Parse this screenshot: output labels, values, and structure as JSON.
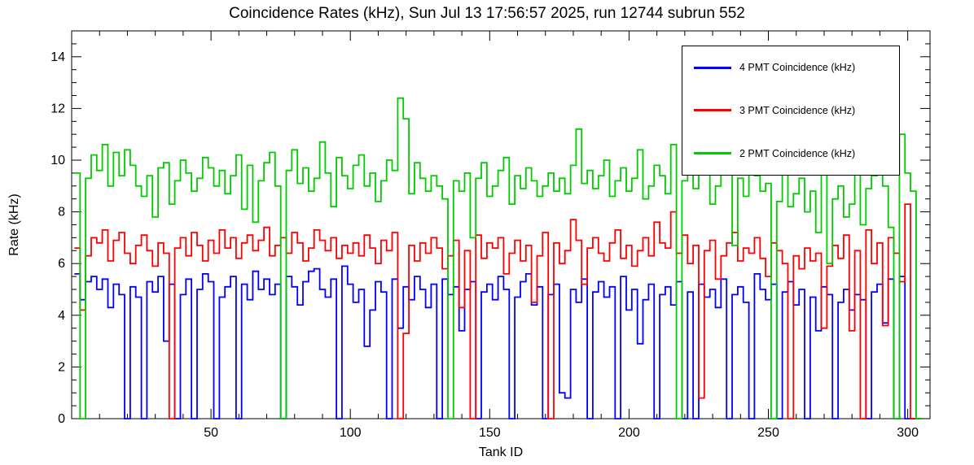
{
  "chart_data": {
    "type": "line",
    "style": "step-histogram",
    "title": "Coincidence Rates (kHz), Sun Jul 13 17:56:57 2025, run 12744 subrun 552",
    "xlabel": "Tank ID",
    "ylabel": "Rate (kHz)",
    "xlim": [
      0,
      308
    ],
    "ylim": [
      0,
      15
    ],
    "grid": false,
    "legend_position": "top-right",
    "x_ticks": [
      50,
      100,
      150,
      200,
      250,
      300
    ],
    "y_ticks": [
      0,
      2,
      4,
      6,
      8,
      10,
      12,
      14
    ],
    "x_bin_start": 1,
    "x_bin_width": 2,
    "series": [
      {
        "name": "4 PMT Coincidence (kHz)",
        "color": "#0000ff",
        "values": [
          5.6,
          4.6,
          5.3,
          5.5,
          5.0,
          5.4,
          4.3,
          5.2,
          4.8,
          0,
          5.1,
          4.7,
          0,
          5.3,
          4.9,
          5.5,
          3.0,
          5.2,
          0,
          4.8,
          5.4,
          0,
          5.0,
          5.6,
          5.3,
          0,
          4.7,
          5.1,
          5.5,
          0,
          5.2,
          4.6,
          5.7,
          5.0,
          5.4,
          4.8,
          5.2,
          0,
          5.5,
          5.1,
          4.4,
          5.3,
          5.7,
          5.8,
          5.0,
          4.7,
          5.4,
          0,
          5.9,
          5.2,
          4.5,
          5.0,
          2.8,
          4.2,
          5.3,
          4.9,
          0,
          5.4,
          3.5,
          5.1,
          4.6,
          5.5,
          5.0,
          4.3,
          5.2,
          0,
          5.4,
          4.8,
          5.1,
          3.4,
          5.0,
          5.3,
          0,
          4.9,
          5.2,
          4.6,
          5.5,
          5.0,
          0,
          4.7,
          5.3,
          5.6,
          4.4,
          5.1,
          0,
          4.8,
          5.2,
          1.0,
          0.8,
          5.0,
          4.5,
          5.4,
          0,
          4.9,
          5.3,
          4.7,
          5.1,
          0,
          5.5,
          4.2,
          5.0,
          2.9,
          4.6,
          5.2,
          0,
          4.8,
          5.1,
          4.4,
          5.3,
          0,
          4.9,
          0,
          5.2,
          4.7,
          5.0,
          4.3,
          5.4,
          0,
          4.8,
          5.1,
          4.5,
          0,
          5.6,
          5.0,
          4.6,
          5.2,
          0,
          4.9,
          5.3,
          4.4,
          5.0,
          0,
          4.7,
          3.4,
          5.1,
          4.8,
          0,
          4.5,
          5.0,
          4.2,
          4.8,
          4.6,
          0,
          4.9,
          5.2,
          3.7,
          5.4,
          0,
          5.5,
          0,
          0,
          0
        ]
      },
      {
        "name": "3 PMT Coincidence (kHz)",
        "color": "#ff0000",
        "values": [
          6.6,
          4.2,
          6.3,
          7.0,
          6.8,
          7.3,
          6.1,
          6.9,
          7.2,
          6.4,
          6.0,
          6.7,
          7.1,
          6.5,
          5.9,
          6.8,
          6.4,
          0,
          6.6,
          7.0,
          6.3,
          7.2,
          6.7,
          6.1,
          6.9,
          6.4,
          7.3,
          6.6,
          7.0,
          6.2,
          6.8,
          7.1,
          6.5,
          6.9,
          7.4,
          6.3,
          6.7,
          7.0,
          6.4,
          7.2,
          6.8,
          6.1,
          6.6,
          7.3,
          6.9,
          6.5,
          7.0,
          6.2,
          6.7,
          6.4,
          6.8,
          6.3,
          7.1,
          6.6,
          6.0,
          6.9,
          6.5,
          7.2,
          0,
          3.3,
          6.7,
          6.1,
          6.8,
          6.4,
          7.0,
          6.6,
          5.8,
          6.3,
          6.9,
          4.3,
          6.5,
          0,
          7.1,
          6.2,
          6.8,
          6.6,
          7.0,
          5.6,
          6.4,
          6.9,
          6.1,
          6.7,
          4.5,
          6.3,
          7.2,
          0,
          6.8,
          6.0,
          6.5,
          7.7,
          6.9,
          5.2,
          6.6,
          7.0,
          6.4,
          6.1,
          6.8,
          7.3,
          6.2,
          6.7,
          5.9,
          6.5,
          7.0,
          6.3,
          7.6,
          6.8,
          6.6,
          8.0,
          6.4,
          7.1,
          6.0,
          6.7,
          0.8,
          6.5,
          6.9,
          5.4,
          6.3,
          6.8,
          7.2,
          6.1,
          6.6,
          6.4,
          7.0,
          6.2,
          5.5,
          6.8,
          6.5,
          6.0,
          0,
          6.3,
          5.8,
          6.6,
          6.1,
          6.4,
          3.5,
          5.9,
          6.7,
          6.2,
          7.1,
          3.4,
          6.5,
          0,
          7.3,
          6.0,
          6.8,
          3.6,
          7.0,
          6.4,
          5.3,
          8.3,
          0,
          0
        ]
      },
      {
        "name": "2 PMT Coincidence (kHz)",
        "color": "#00cc00",
        "values": [
          9.5,
          0,
          9.3,
          10.2,
          9.6,
          10.6,
          9.0,
          10.3,
          9.4,
          10.4,
          9.8,
          9.0,
          8.6,
          9.4,
          7.8,
          9.7,
          9.9,
          8.3,
          9.2,
          10.0,
          9.5,
          8.8,
          9.3,
          10.1,
          9.7,
          9.0,
          9.6,
          8.7,
          9.4,
          10.2,
          8.1,
          9.8,
          7.6,
          9.2,
          9.9,
          10.3,
          9.0,
          0,
          9.6,
          10.4,
          9.1,
          9.7,
          8.8,
          9.3,
          10.7,
          9.5,
          8.2,
          10.1,
          9.4,
          8.9,
          9.8,
          10.2,
          9.0,
          9.5,
          8.4,
          9.2,
          10.0,
          9.6,
          12.4,
          11.6,
          8.7,
          9.9,
          9.3,
          8.8,
          9.4,
          9.0,
          8.5,
          0,
          9.2,
          8.8,
          9.5,
          7.0,
          9.3,
          9.9,
          8.6,
          9.0,
          9.6,
          10.1,
          8.3,
          9.4,
          8.9,
          9.7,
          9.2,
          8.6,
          9.0,
          9.5,
          8.8,
          9.3,
          8.7,
          9.8,
          11.2,
          9.1,
          9.6,
          8.9,
          9.4,
          10.0,
          8.6,
          9.2,
          9.7,
          8.8,
          9.3,
          10.4,
          8.5,
          9.0,
          9.8,
          9.4,
          8.7,
          10.6,
          0,
          9.2,
          9.6,
          8.9,
          10.1,
          9.5,
          8.3,
          9.0,
          10.8,
          9.7,
          6.7,
          9.3,
          8.6,
          9.9,
          9.4,
          8.8,
          9.1,
          0,
          8.4,
          9.6,
          8.2,
          8.7,
          9.3,
          8.0,
          8.8,
          7.2,
          9.5,
          6.0,
          8.5,
          9.0,
          7.8,
          8.3,
          9.7,
          7.5,
          8.9,
          9.4,
          10.2,
          9.0,
          7.4,
          0,
          11.0,
          9.5,
          8.8,
          0
        ]
      }
    ]
  }
}
